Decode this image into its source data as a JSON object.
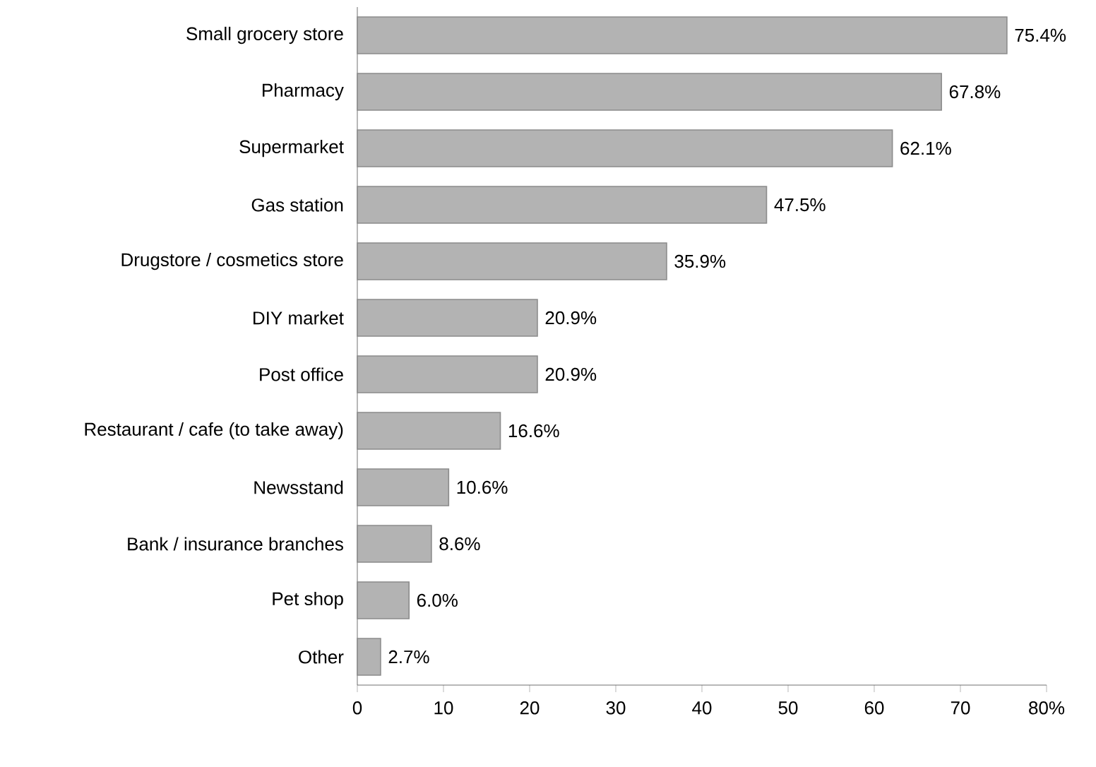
{
  "chart_data": {
    "type": "bar",
    "orientation": "horizontal",
    "categories": [
      "Small grocery store",
      "Pharmacy",
      "Supermarket",
      "Gas station",
      "Drugstore / cosmetics store",
      "DIY market",
      "Post office",
      "Restaurant / cafe (to take away)",
      "Newsstand",
      "Bank / insurance branches",
      "Pet shop",
      "Other"
    ],
    "values": [
      75.4,
      67.8,
      62.1,
      47.5,
      35.9,
      20.9,
      20.9,
      16.6,
      10.6,
      8.6,
      6.0,
      2.7
    ],
    "value_labels": [
      "75.4%",
      "67.8%",
      "62.1%",
      "47.5%",
      "35.9%",
      "20.9%",
      "20.9%",
      "16.6%",
      "10.6%",
      "8.6%",
      "6.0%",
      "2.7%"
    ],
    "color": "#b3b3b3",
    "xlim": [
      0,
      80
    ],
    "xticks": [
      0,
      10,
      20,
      30,
      40,
      50,
      60,
      70,
      {
        "value": 80,
        "label": "80%"
      }
    ]
  }
}
